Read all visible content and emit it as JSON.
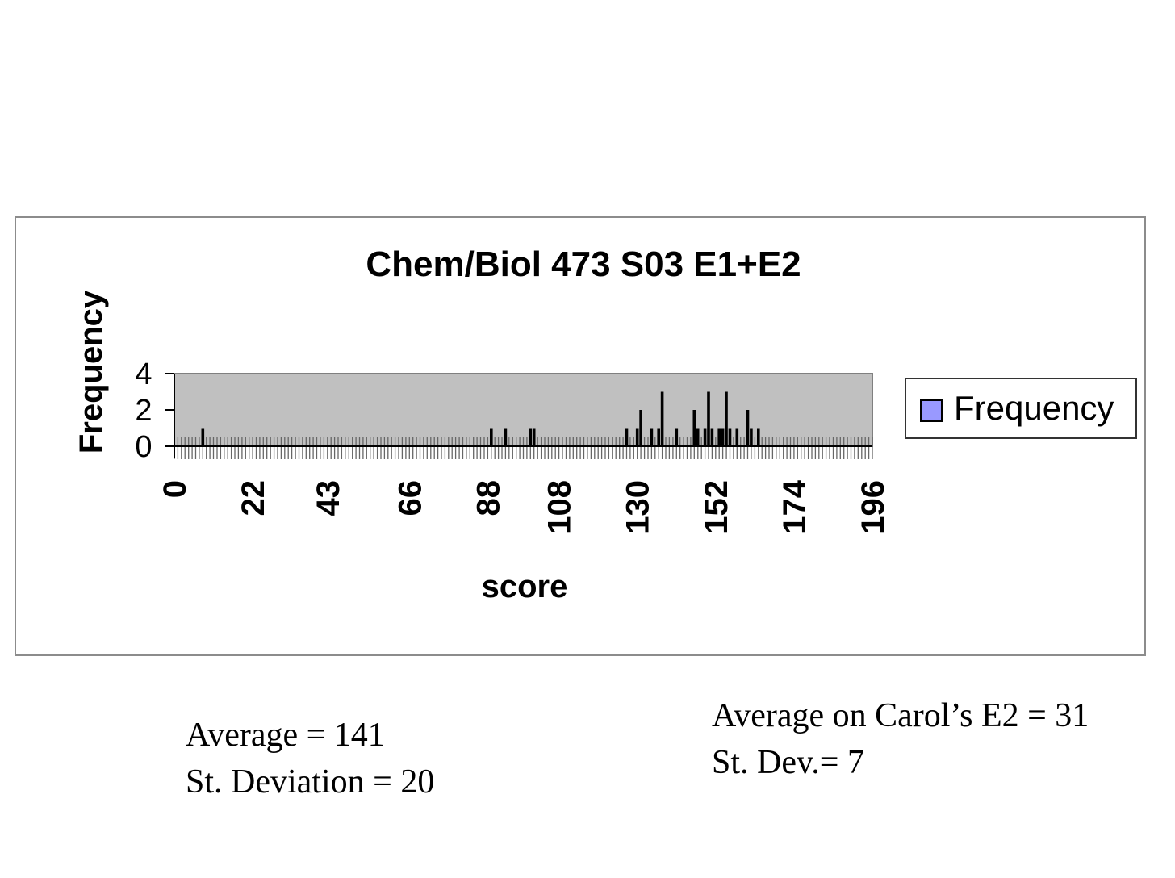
{
  "chart_data": {
    "type": "bar",
    "title": "Chem/Biol 473 S03 E1+E2",
    "xlabel": "score",
    "ylabel": "Frequency",
    "ylim": [
      0,
      4
    ],
    "yticks": [
      0,
      2,
      4
    ],
    "xlim": [
      0,
      196
    ],
    "xticks": [
      0,
      22,
      43,
      66,
      88,
      108,
      130,
      152,
      174,
      196
    ],
    "legend": {
      "placement": "right",
      "entries": [
        "Frequency"
      ]
    },
    "grid": false,
    "series": [
      {
        "name": "Frequency",
        "points": [
          {
            "x": 8,
            "y": 1
          },
          {
            "x": 89,
            "y": 1
          },
          {
            "x": 93,
            "y": 1
          },
          {
            "x": 100,
            "y": 1
          },
          {
            "x": 101,
            "y": 1
          },
          {
            "x": 127,
            "y": 1
          },
          {
            "x": 130,
            "y": 1
          },
          {
            "x": 131,
            "y": 2
          },
          {
            "x": 134,
            "y": 1
          },
          {
            "x": 136,
            "y": 1
          },
          {
            "x": 137,
            "y": 3
          },
          {
            "x": 141,
            "y": 1
          },
          {
            "x": 146,
            "y": 2
          },
          {
            "x": 147,
            "y": 1
          },
          {
            "x": 149,
            "y": 1
          },
          {
            "x": 150,
            "y": 3
          },
          {
            "x": 151,
            "y": 1
          },
          {
            "x": 153,
            "y": 1
          },
          {
            "x": 154,
            "y": 1
          },
          {
            "x": 155,
            "y": 3
          },
          {
            "x": 156,
            "y": 1
          },
          {
            "x": 158,
            "y": 1
          },
          {
            "x": 161,
            "y": 2
          },
          {
            "x": 162,
            "y": 1
          },
          {
            "x": 164,
            "y": 1
          }
        ]
      }
    ]
  },
  "colors": {
    "plot_background": "#c0c0c0",
    "bar": "#000000",
    "legend_key": "#9999ff",
    "frame": "#8c8c8c"
  },
  "stats": {
    "average": "Average = 141",
    "st_deviation": "St. Deviation = 20",
    "carol_average": "Average on Carol’s E2 = 31",
    "carol_st_dev": "St. Dev.= 7"
  }
}
